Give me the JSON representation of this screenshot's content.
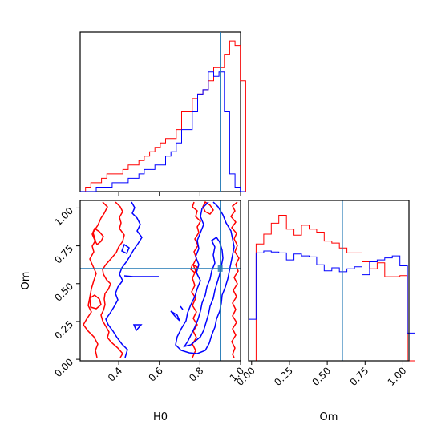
{
  "chart_data": [
    {
      "type": "histogram",
      "panel": "H0 marginal",
      "x_range": [
        0.21,
        1.0
      ],
      "bin_width": 0.0263,
      "truth": 0.9,
      "colors": {
        "series_a": "#ff0000",
        "series_b": "#0000ff",
        "truth": "#1f77b4"
      },
      "series": [
        {
          "color": "#ff0000",
          "counts": [
            0,
            1,
            2,
            2,
            3,
            4,
            4,
            4,
            5,
            6,
            6,
            7,
            8,
            9,
            10,
            11,
            12,
            12,
            14,
            18,
            18,
            21,
            22,
            23,
            25,
            28,
            28,
            31,
            34,
            33,
            25
          ]
        },
        {
          "color": "#0000ff",
          "counts": [
            0,
            0,
            0,
            1,
            1,
            1,
            2,
            2,
            2,
            3,
            3,
            4,
            5,
            5,
            6,
            6,
            8,
            9,
            11,
            14,
            14,
            18,
            22,
            23,
            27,
            26,
            27,
            18,
            4,
            1,
            0
          ]
        }
      ]
    },
    {
      "type": "contour",
      "panel": "Om vs H0 joint",
      "xlabel": "H0",
      "ylabel": "Om",
      "xlim": [
        0.21,
        1.0
      ],
      "ylim": [
        -0.01,
        1.05
      ],
      "xticks": [
        "0.4",
        "0.6",
        "0.8",
        "1.0"
      ],
      "yticks": [
        "0.00",
        "0.25",
        "0.50",
        "0.75",
        "1.00"
      ],
      "truth": {
        "H0": 0.9,
        "Om": 0.6
      },
      "colors": {
        "series_a": "#ff0000",
        "series_b": "#0000ff",
        "truth": "#1f77b4"
      }
    },
    {
      "type": "histogram",
      "panel": "Om marginal",
      "xlabel": "Om",
      "x_range": [
        -0.02,
        1.04
      ],
      "bin_width": 0.05,
      "truth": 0.6,
      "xticks": [
        "0.00",
        "0.25",
        "0.50",
        "0.75",
        "1.00"
      ],
      "colors": {
        "series_a": "#ff0000",
        "series_b": "#0000ff",
        "truth": "#1f77b4"
      },
      "series": [
        {
          "color": "#ff0000",
          "counts": [
            0,
            11.8,
            12.8,
            13.9,
            14.7,
            13.3,
            12.7,
            13.7,
            13.3,
            13.0,
            12.1,
            11.9,
            11.4,
            10.9,
            10.9,
            10.0,
            9.3,
            9.9,
            8.5,
            8.5,
            8.6,
            0
          ]
        },
        {
          "color": "#0000ff",
          "counts": [
            4.2,
            10.9,
            11.1,
            11.0,
            10.9,
            10.2,
            10.8,
            10.6,
            10.5,
            9.7,
            9.1,
            9.4,
            9.0,
            9.3,
            9.5,
            8.7,
            10.0,
            10.2,
            10.4,
            10.6,
            9.6,
            2.8
          ]
        }
      ]
    }
  ]
}
